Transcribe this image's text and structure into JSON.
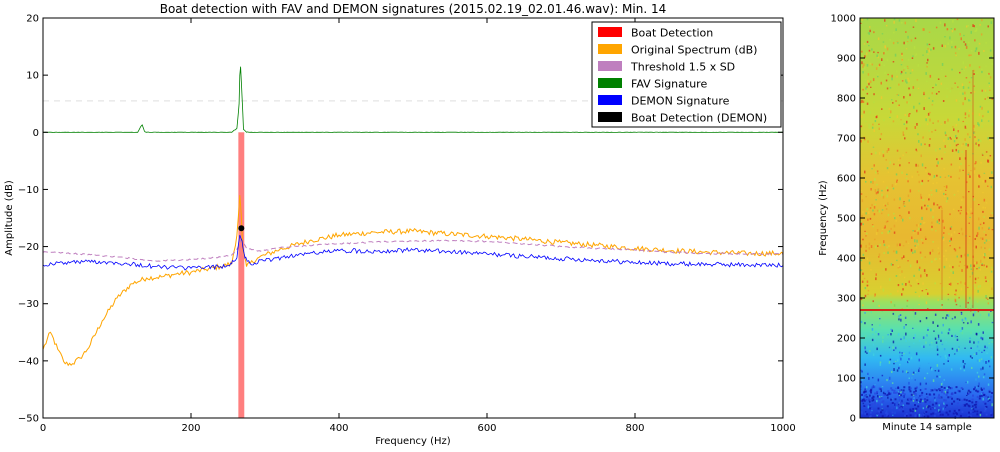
{
  "chart_data": [
    {
      "type": "line",
      "title": "Boat detection with FAV and DEMON signatures (2015.02.19_02.01.46.wav): Min. 14",
      "xlabel": "Frequency (Hz)",
      "ylabel": "Amplitude (dB)",
      "xlim": [
        0,
        1000
      ],
      "ylim": [
        -50,
        20
      ],
      "xticks": [
        "0",
        "200",
        "400",
        "600",
        "800",
        "1000"
      ],
      "yticks": [
        "20",
        "10",
        "0",
        "−10",
        "−20",
        "−30",
        "−40",
        "−50"
      ],
      "grid": false,
      "legend_position": "top-right",
      "legend": [
        {
          "name": "Boat Detection",
          "color": "#ff0000"
        },
        {
          "name": "Original Spectrum (dB)",
          "color": "#ffa500"
        },
        {
          "name": "Threshold 1.5 x SD",
          "color": "#bf7fbf"
        },
        {
          "name": "FAV Signature",
          "color": "#008000"
        },
        {
          "name": "DEMON Signature",
          "color": "#0000ff"
        },
        {
          "name": "Boat Detection (DEMON)",
          "color": "#000000"
        }
      ],
      "detection_band": {
        "x_start": 264,
        "x_end": 272,
        "y_from": -50,
        "y_to": 0
      },
      "demon_detection_point": {
        "x": 268,
        "y": -16.8
      },
      "threshold_line": {
        "y": 5.5
      },
      "series": [
        {
          "name": "Original Spectrum (dB)",
          "color": "#ffa500",
          "x": [
            0,
            10,
            20,
            30,
            40,
            50,
            60,
            80,
            100,
            120,
            140,
            160,
            180,
            200,
            220,
            240,
            255,
            262,
            266,
            268,
            270,
            275,
            290,
            320,
            360,
            400,
            450,
            500,
            550,
            600,
            650,
            700,
            750,
            800,
            850,
            900,
            950,
            1000
          ],
          "y": [
            -38,
            -35,
            -38,
            -40.5,
            -40.5,
            -39.5,
            -38,
            -33,
            -29,
            -26.5,
            -25.5,
            -25.3,
            -24.8,
            -24.5,
            -24,
            -23.5,
            -23,
            -18,
            -11,
            -14.5,
            -20.5,
            -23.5,
            -22,
            -20.5,
            -19,
            -18,
            -17.5,
            -17.3,
            -17.8,
            -18.2,
            -18.7,
            -19.3,
            -19.8,
            -20.3,
            -20.7,
            -21,
            -21.2,
            -21.2
          ]
        },
        {
          "name": "Threshold 1.5 x SD",
          "color": "#bf7fbf",
          "x": [
            0,
            20,
            50,
            100,
            150,
            200,
            240,
            255,
            262,
            268,
            275,
            290,
            320,
            360,
            400,
            450,
            500,
            550,
            600,
            650,
            700,
            750,
            800,
            850,
            900,
            950,
            1000
          ],
          "y": [
            -21,
            -21,
            -21.3,
            -21.8,
            -22.5,
            -22.3,
            -21.8,
            -21.5,
            -20.5,
            -18.8,
            -20.3,
            -20.8,
            -20.2,
            -19.8,
            -19.5,
            -19.2,
            -19,
            -19,
            -19.1,
            -19.5,
            -20,
            -20.3,
            -20.6,
            -21,
            -21.2,
            -21.3,
            -21.3
          ]
        },
        {
          "name": "DEMON Signature",
          "color": "#0000ff",
          "x": [
            0,
            30,
            60,
            100,
            150,
            200,
            240,
            255,
            262,
            266,
            269,
            273,
            280,
            300,
            330,
            360,
            400,
            450,
            500,
            550,
            600,
            650,
            700,
            750,
            800,
            850,
            900,
            950,
            1000
          ],
          "y": [
            -23.2,
            -22.8,
            -22.6,
            -22.8,
            -23.5,
            -23.8,
            -23.5,
            -23,
            -22,
            -18,
            -19,
            -22,
            -23,
            -22.5,
            -21.7,
            -21.2,
            -20.7,
            -20.8,
            -20.6,
            -20.9,
            -21.3,
            -21.7,
            -22.1,
            -22.4,
            -22.8,
            -23,
            -23.1,
            -23.2,
            -23.3
          ]
        },
        {
          "name": "FAV Signature",
          "color": "#008000",
          "x": [
            0,
            128,
            132,
            134,
            137,
            140,
            255,
            262,
            265,
            266,
            267,
            268,
            271,
            275,
            300,
            700,
            1000
          ],
          "y": [
            0,
            0,
            1,
            1.3,
            0.2,
            0,
            0,
            0.7,
            5,
            10,
            11.5,
            9,
            0.5,
            0,
            0,
            0,
            0
          ]
        }
      ]
    },
    {
      "type": "heatmap",
      "xlabel": "Minute 14 sample",
      "ylabel": "Frequency (Hz)",
      "ylim": [
        0,
        1000
      ],
      "yticks": [
        "0",
        "100",
        "200",
        "300",
        "400",
        "500",
        "600",
        "700",
        "800",
        "900",
        "1000"
      ],
      "tonal_line_hz": 270
    }
  ]
}
